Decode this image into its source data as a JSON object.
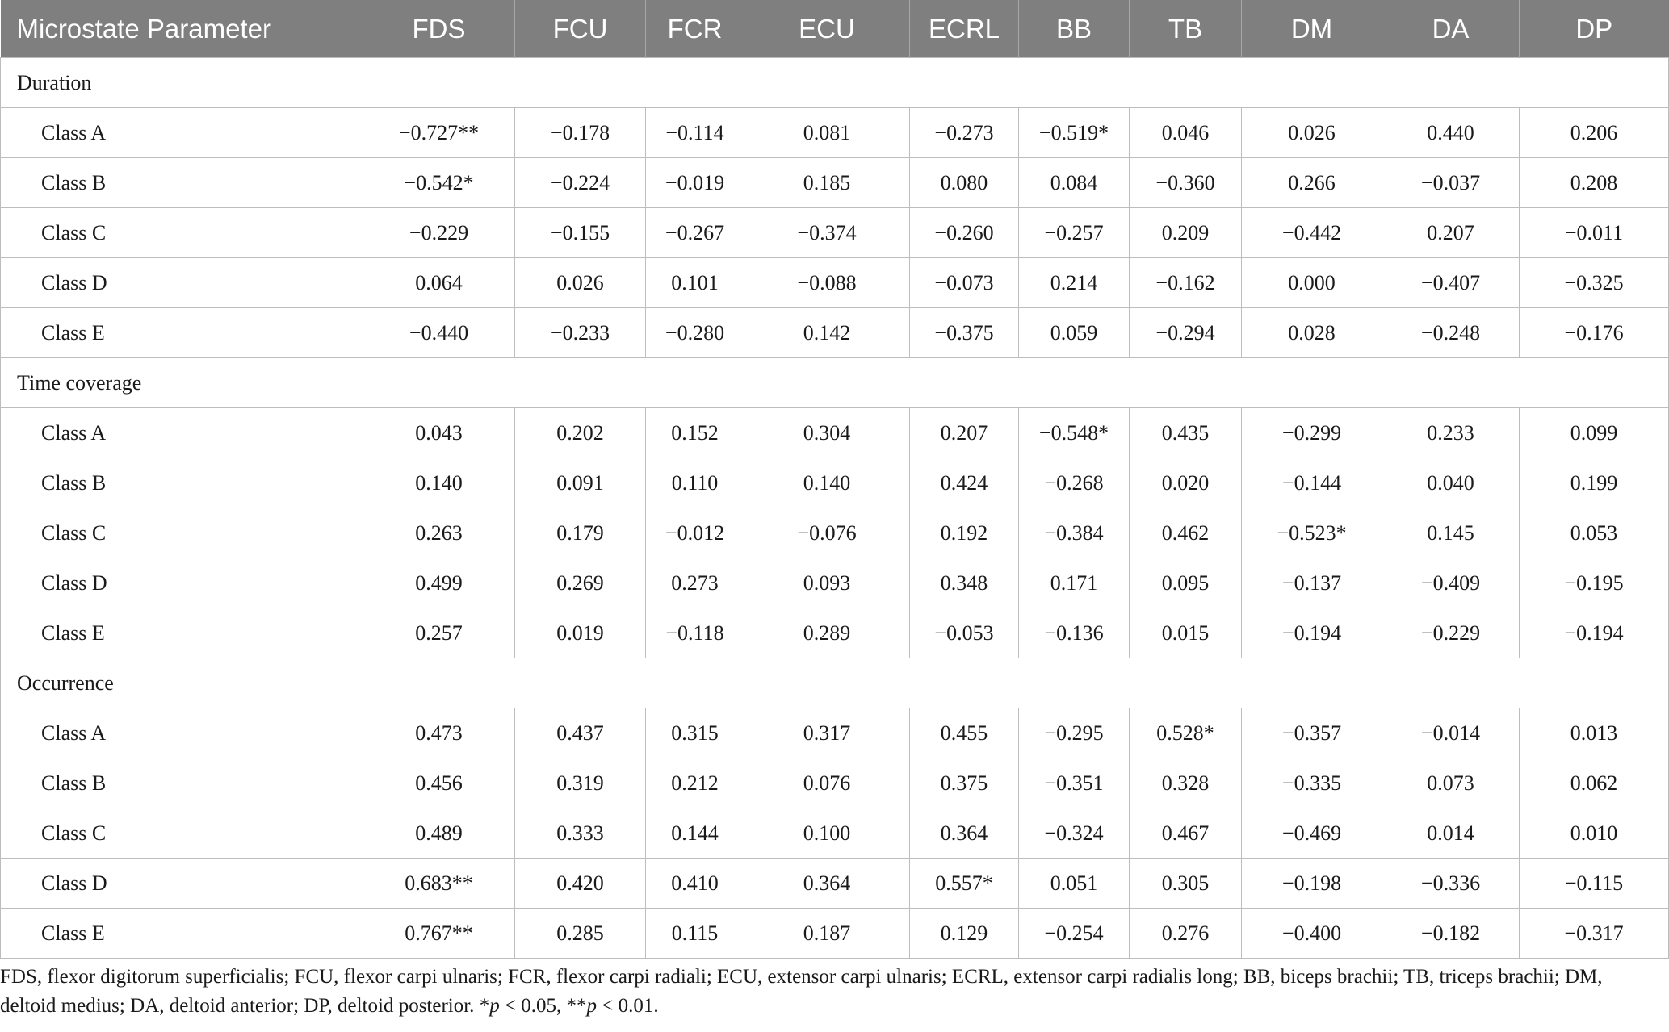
{
  "columns": [
    "Microstate Parameter",
    "FDS",
    "FCU",
    "FCR",
    "ECU",
    "ECRL",
    "BB",
    "TB",
    "DM",
    "DA",
    "DP"
  ],
  "sections": [
    {
      "title": "Duration",
      "rows": [
        {
          "label": "Class A",
          "values": [
            "−0.727**",
            "−0.178",
            "−0.114",
            "0.081",
            "−0.273",
            "−0.519*",
            "0.046",
            "0.026",
            "0.440",
            "0.206"
          ]
        },
        {
          "label": "Class B",
          "values": [
            "−0.542*",
            "−0.224",
            "−0.019",
            "0.185",
            "0.080",
            "0.084",
            "−0.360",
            "0.266",
            "−0.037",
            "0.208"
          ]
        },
        {
          "label": "Class C",
          "values": [
            "−0.229",
            "−0.155",
            "−0.267",
            "−0.374",
            "−0.260",
            "−0.257",
            "0.209",
            "−0.442",
            "0.207",
            "−0.011"
          ]
        },
        {
          "label": "Class D",
          "values": [
            "0.064",
            "0.026",
            "0.101",
            "−0.088",
            "−0.073",
            "0.214",
            "−0.162",
            "0.000",
            "−0.407",
            "−0.325"
          ]
        },
        {
          "label": "Class E",
          "values": [
            "−0.440",
            "−0.233",
            "−0.280",
            "0.142",
            "−0.375",
            "0.059",
            "−0.294",
            "0.028",
            "−0.248",
            "−0.176"
          ]
        }
      ]
    },
    {
      "title": "Time coverage",
      "rows": [
        {
          "label": "Class A",
          "values": [
            "0.043",
            "0.202",
            "0.152",
            "0.304",
            "0.207",
            "−0.548*",
            "0.435",
            "−0.299",
            "0.233",
            "0.099"
          ]
        },
        {
          "label": "Class B",
          "values": [
            "0.140",
            "0.091",
            "0.110",
            "0.140",
            "0.424",
            "−0.268",
            "0.020",
            "−0.144",
            "0.040",
            "0.199"
          ]
        },
        {
          "label": "Class C",
          "values": [
            "0.263",
            "0.179",
            "−0.012",
            "−0.076",
            "0.192",
            "−0.384",
            "0.462",
            "−0.523*",
            "0.145",
            "0.053"
          ]
        },
        {
          "label": "Class D",
          "values": [
            "0.499",
            "0.269",
            "0.273",
            "0.093",
            "0.348",
            "0.171",
            "0.095",
            "−0.137",
            "−0.409",
            "−0.195"
          ]
        },
        {
          "label": "Class E",
          "values": [
            "0.257",
            "0.019",
            "−0.118",
            "0.289",
            "−0.053",
            "−0.136",
            "0.015",
            "−0.194",
            "−0.229",
            "−0.194"
          ]
        }
      ]
    },
    {
      "title": "Occurrence",
      "rows": [
        {
          "label": "Class A",
          "values": [
            "0.473",
            "0.437",
            "0.315",
            "0.317",
            "0.455",
            "−0.295",
            "0.528*",
            "−0.357",
            "−0.014",
            "0.013"
          ]
        },
        {
          "label": "Class B",
          "values": [
            "0.456",
            "0.319",
            "0.212",
            "0.076",
            "0.375",
            "−0.351",
            "0.328",
            "−0.335",
            "0.073",
            "0.062"
          ]
        },
        {
          "label": "Class C",
          "values": [
            "0.489",
            "0.333",
            "0.144",
            "0.100",
            "0.364",
            "−0.324",
            "0.467",
            "−0.469",
            "0.014",
            "0.010"
          ]
        },
        {
          "label": "Class D",
          "values": [
            "0.683**",
            "0.420",
            "0.410",
            "0.364",
            "0.557*",
            "0.051",
            "0.305",
            "−0.198",
            "−0.336",
            "−0.115"
          ]
        },
        {
          "label": "Class E",
          "values": [
            "0.767**",
            "0.285",
            "0.115",
            "0.187",
            "0.129",
            "−0.254",
            "0.276",
            "−0.400",
            "−0.182",
            "−0.317"
          ]
        }
      ]
    }
  ],
  "footnote": {
    "text": "FDS, flexor digitorum superficialis; FCU, flexor carpi ulnaris; FCR, flexor carpi radiali; ECU, extensor carpi ulnaris; ECRL, extensor carpi radialis long; BB, biceps brachii; TB, triceps brachii; DM, deltoid medius; DA, deltoid anterior; DP, deltoid posterior.",
    "sig1_prefix": " *",
    "sig1_var": "p",
    "sig1_rest": " < 0.05, **",
    "sig2_var": "p",
    "sig2_rest": " < 0.01."
  }
}
